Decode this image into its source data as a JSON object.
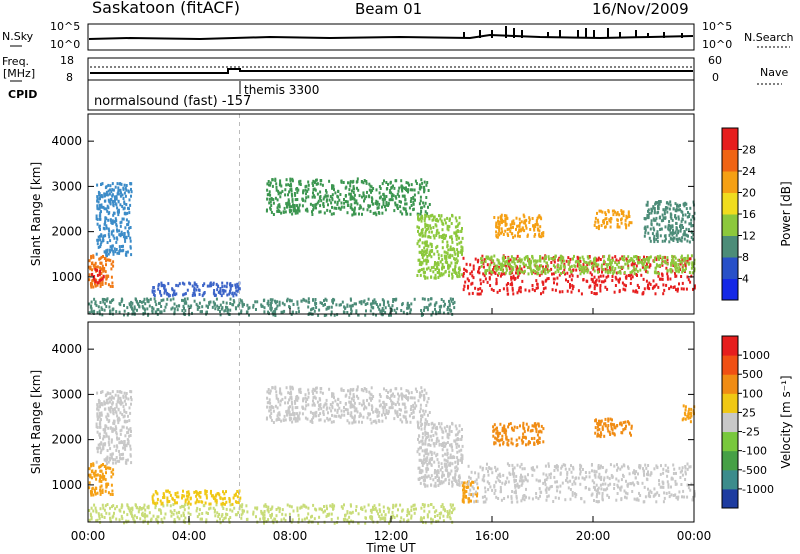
{
  "header": {
    "station": "Saskatoon (fitACF)",
    "beam": "Beam 01",
    "date": "16/Nov/2009"
  },
  "top_panels": {
    "nsky_label": "N.Sky",
    "nsearch_label": "N.Search",
    "freq_label": "Freq.",
    "freq_unit": "[MHz]",
    "nave_label": "Nave",
    "cpid_label": "CPID",
    "noise_left_ticks": [
      "10^5",
      "10^0"
    ],
    "noise_right_ticks": [
      "10^5",
      "10^0"
    ],
    "freq_ticks": [
      "18",
      "8"
    ],
    "nave_ticks": [
      "60",
      "0"
    ],
    "cpid_entries": [
      "normalsound (fast) -157",
      "themis 3300"
    ]
  },
  "chart_data": [
    {
      "type": "heatmap",
      "title": "",
      "xlabel": "",
      "ylabel": "Slant Range [km]",
      "xlim": [
        "00:00",
        "24:00"
      ],
      "ylim": [
        180,
        4600
      ],
      "y_ticks": [
        "1000",
        "2000",
        "3000",
        "4000"
      ],
      "colorbar_label": "Power [dB]",
      "colorbar_ticks": [
        "4",
        "8",
        "12",
        "16",
        "20",
        "24",
        "28"
      ],
      "colorbar_colors": [
        "#1428e6",
        "#2850c8",
        "#4c8c78",
        "#8cc83c",
        "#f0dc1e",
        "#f5a014",
        "#f06414",
        "#e61e1e"
      ],
      "regions": [
        {
          "t0": 0.0,
          "t1": 1.0,
          "r0": 800,
          "r1": 1500,
          "color": "#f07814"
        },
        {
          "t0": 0.1,
          "t1": 0.6,
          "r0": 900,
          "r1": 1200,
          "color": "#e61e1e"
        },
        {
          "t0": 0.3,
          "t1": 1.7,
          "r0": 1500,
          "r1": 3100,
          "color": "#3c8cc8"
        },
        {
          "t0": 2.5,
          "t1": 6.0,
          "r0": 600,
          "r1": 900,
          "color": "#3c64c8"
        },
        {
          "t0": 0.0,
          "t1": 14.5,
          "r0": 180,
          "r1": 550,
          "color": "#4c8c78"
        },
        {
          "t0": 7.0,
          "t1": 13.5,
          "r0": 2400,
          "r1": 3200,
          "color": "#3c9650"
        },
        {
          "t0": 13.0,
          "t1": 14.8,
          "r0": 1000,
          "r1": 2400,
          "color": "#8cc83c"
        },
        {
          "t0": 14.8,
          "t1": 24.0,
          "r0": 650,
          "r1": 1500,
          "color": "#e61e1e"
        },
        {
          "t0": 15.5,
          "t1": 24.0,
          "r0": 1100,
          "r1": 1500,
          "color": "#8cc83c"
        },
        {
          "t0": 16.0,
          "t1": 18.0,
          "r0": 1900,
          "r1": 2400,
          "color": "#f5a014"
        },
        {
          "t0": 20.0,
          "t1": 21.5,
          "r0": 2100,
          "r1": 2500,
          "color": "#f5a014"
        },
        {
          "t0": 22.0,
          "t1": 24.0,
          "r0": 1800,
          "r1": 2700,
          "color": "#4c8c78"
        }
      ]
    },
    {
      "type": "heatmap",
      "title": "",
      "xlabel": "Time UT",
      "ylabel": "Slant Range [km]",
      "xlim": [
        "00:00",
        "24:00"
      ],
      "ylim": [
        180,
        4600
      ],
      "x_ticks": [
        "00:00",
        "04:00",
        "08:00",
        "12:00",
        "16:00",
        "20:00",
        "00:00"
      ],
      "y_ticks": [
        "1000",
        "2000",
        "3000",
        "4000"
      ],
      "colorbar_label": "Velocity [m s^-1]",
      "colorbar_ticks": [
        "1000",
        "500",
        "100",
        "25",
        "-25",
        "-100",
        "-500",
        "-1000"
      ],
      "colorbar_colors": [
        "#1e3ca0",
        "#3c8c8c",
        "#46a046",
        "#78c83c",
        "#c8c8c8",
        "#f0c814",
        "#f08c14",
        "#f05014",
        "#e61e1e"
      ],
      "regions": [
        {
          "t0": 0.0,
          "t1": 1.0,
          "r0": 800,
          "r1": 1500,
          "color": "#f5a014"
        },
        {
          "t0": 0.3,
          "t1": 1.7,
          "r0": 1500,
          "r1": 3100,
          "color": "#c8c8c8"
        },
        {
          "t0": 0.0,
          "t1": 14.5,
          "r0": 180,
          "r1": 600,
          "color": "#c8dc78"
        },
        {
          "t0": 2.5,
          "t1": 6.0,
          "r0": 600,
          "r1": 900,
          "color": "#f0c814"
        },
        {
          "t0": 7.0,
          "t1": 13.5,
          "r0": 2400,
          "r1": 3200,
          "color": "#c8c8c8"
        },
        {
          "t0": 13.0,
          "t1": 14.8,
          "r0": 1000,
          "r1": 2400,
          "color": "#c8c8c8"
        },
        {
          "t0": 14.8,
          "t1": 15.5,
          "r0": 650,
          "r1": 1100,
          "color": "#f5a014"
        },
        {
          "t0": 15.0,
          "t1": 24.0,
          "r0": 650,
          "r1": 1500,
          "color": "#c8c8c8"
        },
        {
          "t0": 16.0,
          "t1": 18.0,
          "r0": 1900,
          "r1": 2400,
          "color": "#f08c14"
        },
        {
          "t0": 20.0,
          "t1": 21.5,
          "r0": 2100,
          "r1": 2500,
          "color": "#f08c14"
        },
        {
          "t0": 23.5,
          "t1": 24.0,
          "r0": 2400,
          "r1": 2800,
          "color": "#f5a014"
        }
      ]
    }
  ]
}
